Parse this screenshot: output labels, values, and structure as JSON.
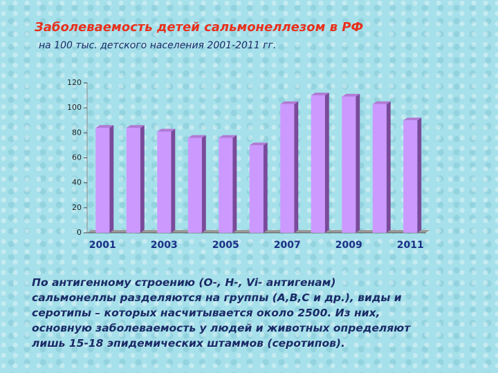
{
  "chart_data": {
    "type": "bar",
    "title": "Заболеваемость детей сальмонеллезом в РФ",
    "subtitle": "на 100 тыс. детского населения 2001-2011 гг.",
    "categories": [
      "2001",
      null,
      "2003",
      null,
      "2005",
      null,
      "2007",
      null,
      "2009",
      null,
      "2011"
    ],
    "values": [
      84,
      84,
      81,
      76,
      76,
      70,
      103,
      110,
      109,
      103,
      90
    ],
    "color": "#cc99ff",
    "ylim": [
      0,
      120
    ],
    "yticks": [
      0,
      20,
      40,
      60,
      80,
      100,
      120
    ],
    "annotation_lines": [
      "По антигенному строению  (О-, Н-, Vi- антигенам)",
      "сальмонеллы разделяются на группы  (А,В,С и др.), виды и",
      "серотипы – которых насчитывается около 2500.  Из них,",
      "основную заболеваемость у людей и животных определяют",
      "лишь 15-18 эпидемических штаммов (серотипов)."
    ]
  }
}
